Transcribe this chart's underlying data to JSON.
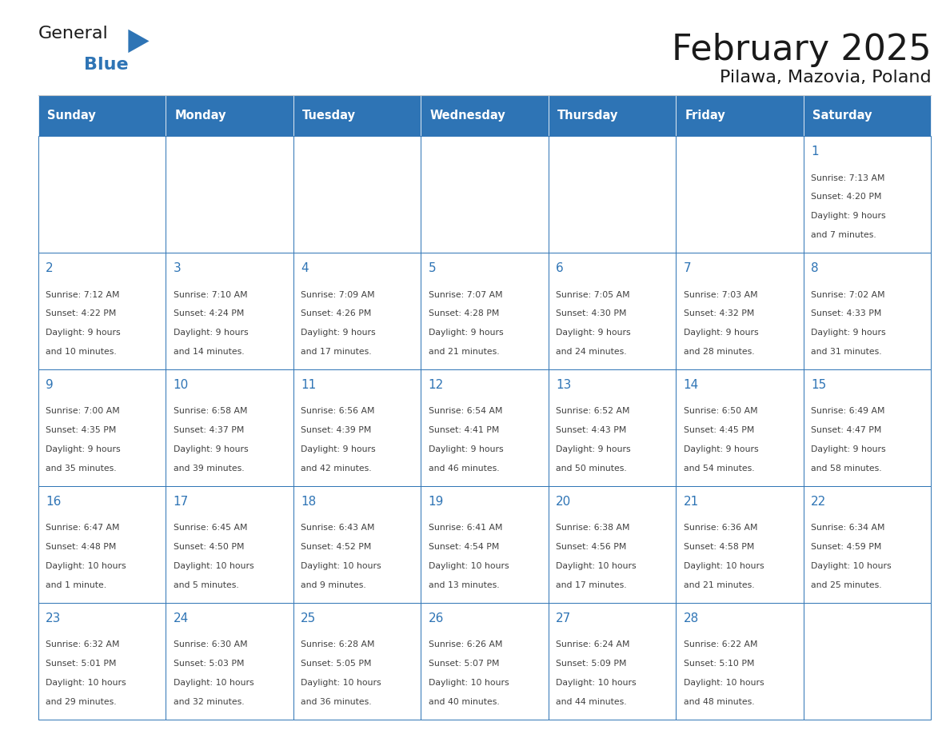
{
  "title": "February 2025",
  "subtitle": "Pilawa, Mazovia, Poland",
  "days_of_week": [
    "Sunday",
    "Monday",
    "Tuesday",
    "Wednesday",
    "Thursday",
    "Friday",
    "Saturday"
  ],
  "header_bg": "#2e74b5",
  "header_text_color": "#ffffff",
  "cell_bg": "#ffffff",
  "cell_border_color": "#2e74b5",
  "day_number_color": "#2e74b5",
  "cell_text_color": "#404040",
  "title_color": "#1a1a1a",
  "subtitle_color": "#1a1a1a",
  "logo_general_color": "#1a1a1a",
  "logo_blue_color": "#2e74b5",
  "weeks": [
    [
      {
        "day": null,
        "info": ""
      },
      {
        "day": null,
        "info": ""
      },
      {
        "day": null,
        "info": ""
      },
      {
        "day": null,
        "info": ""
      },
      {
        "day": null,
        "info": ""
      },
      {
        "day": null,
        "info": ""
      },
      {
        "day": 1,
        "info": "Sunrise: 7:13 AM\nSunset: 4:20 PM\nDaylight: 9 hours\nand 7 minutes."
      }
    ],
    [
      {
        "day": 2,
        "info": "Sunrise: 7:12 AM\nSunset: 4:22 PM\nDaylight: 9 hours\nand 10 minutes."
      },
      {
        "day": 3,
        "info": "Sunrise: 7:10 AM\nSunset: 4:24 PM\nDaylight: 9 hours\nand 14 minutes."
      },
      {
        "day": 4,
        "info": "Sunrise: 7:09 AM\nSunset: 4:26 PM\nDaylight: 9 hours\nand 17 minutes."
      },
      {
        "day": 5,
        "info": "Sunrise: 7:07 AM\nSunset: 4:28 PM\nDaylight: 9 hours\nand 21 minutes."
      },
      {
        "day": 6,
        "info": "Sunrise: 7:05 AM\nSunset: 4:30 PM\nDaylight: 9 hours\nand 24 minutes."
      },
      {
        "day": 7,
        "info": "Sunrise: 7:03 AM\nSunset: 4:32 PM\nDaylight: 9 hours\nand 28 minutes."
      },
      {
        "day": 8,
        "info": "Sunrise: 7:02 AM\nSunset: 4:33 PM\nDaylight: 9 hours\nand 31 minutes."
      }
    ],
    [
      {
        "day": 9,
        "info": "Sunrise: 7:00 AM\nSunset: 4:35 PM\nDaylight: 9 hours\nand 35 minutes."
      },
      {
        "day": 10,
        "info": "Sunrise: 6:58 AM\nSunset: 4:37 PM\nDaylight: 9 hours\nand 39 minutes."
      },
      {
        "day": 11,
        "info": "Sunrise: 6:56 AM\nSunset: 4:39 PM\nDaylight: 9 hours\nand 42 minutes."
      },
      {
        "day": 12,
        "info": "Sunrise: 6:54 AM\nSunset: 4:41 PM\nDaylight: 9 hours\nand 46 minutes."
      },
      {
        "day": 13,
        "info": "Sunrise: 6:52 AM\nSunset: 4:43 PM\nDaylight: 9 hours\nand 50 minutes."
      },
      {
        "day": 14,
        "info": "Sunrise: 6:50 AM\nSunset: 4:45 PM\nDaylight: 9 hours\nand 54 minutes."
      },
      {
        "day": 15,
        "info": "Sunrise: 6:49 AM\nSunset: 4:47 PM\nDaylight: 9 hours\nand 58 minutes."
      }
    ],
    [
      {
        "day": 16,
        "info": "Sunrise: 6:47 AM\nSunset: 4:48 PM\nDaylight: 10 hours\nand 1 minute."
      },
      {
        "day": 17,
        "info": "Sunrise: 6:45 AM\nSunset: 4:50 PM\nDaylight: 10 hours\nand 5 minutes."
      },
      {
        "day": 18,
        "info": "Sunrise: 6:43 AM\nSunset: 4:52 PM\nDaylight: 10 hours\nand 9 minutes."
      },
      {
        "day": 19,
        "info": "Sunrise: 6:41 AM\nSunset: 4:54 PM\nDaylight: 10 hours\nand 13 minutes."
      },
      {
        "day": 20,
        "info": "Sunrise: 6:38 AM\nSunset: 4:56 PM\nDaylight: 10 hours\nand 17 minutes."
      },
      {
        "day": 21,
        "info": "Sunrise: 6:36 AM\nSunset: 4:58 PM\nDaylight: 10 hours\nand 21 minutes."
      },
      {
        "day": 22,
        "info": "Sunrise: 6:34 AM\nSunset: 4:59 PM\nDaylight: 10 hours\nand 25 minutes."
      }
    ],
    [
      {
        "day": 23,
        "info": "Sunrise: 6:32 AM\nSunset: 5:01 PM\nDaylight: 10 hours\nand 29 minutes."
      },
      {
        "day": 24,
        "info": "Sunrise: 6:30 AM\nSunset: 5:03 PM\nDaylight: 10 hours\nand 32 minutes."
      },
      {
        "day": 25,
        "info": "Sunrise: 6:28 AM\nSunset: 5:05 PM\nDaylight: 10 hours\nand 36 minutes."
      },
      {
        "day": 26,
        "info": "Sunrise: 6:26 AM\nSunset: 5:07 PM\nDaylight: 10 hours\nand 40 minutes."
      },
      {
        "day": 27,
        "info": "Sunrise: 6:24 AM\nSunset: 5:09 PM\nDaylight: 10 hours\nand 44 minutes."
      },
      {
        "day": 28,
        "info": "Sunrise: 6:22 AM\nSunset: 5:10 PM\nDaylight: 10 hours\nand 48 minutes."
      },
      {
        "day": null,
        "info": ""
      }
    ]
  ]
}
